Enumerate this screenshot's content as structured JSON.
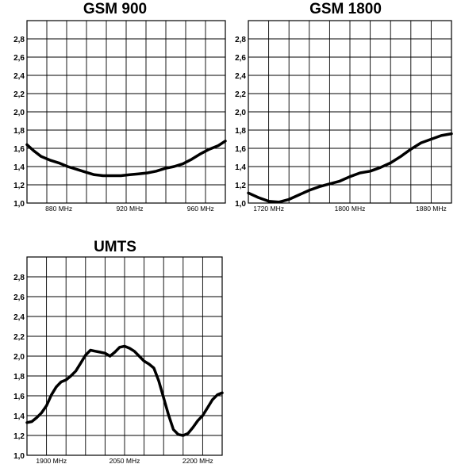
{
  "chart_data": [
    {
      "type": "line",
      "title": "GSM 900",
      "xlabel": "",
      "ylabel": "",
      "xlim": [
        862,
        974
      ],
      "ylim": [
        1.0,
        3.0
      ],
      "grid": true,
      "y_ticks": [
        "1,0",
        "1,2",
        "1,4",
        "1,6",
        "1,8",
        "2,0",
        "2,2",
        "2,4",
        "2,6",
        "2,8"
      ],
      "x_ticks": [
        {
          "value": 880,
          "label": "880 MHz"
        },
        {
          "value": 920,
          "label": "920 MHz"
        },
        {
          "value": 960,
          "label": "960 MHz"
        }
      ],
      "series": [
        {
          "x": [
            862,
            866,
            870,
            875,
            880,
            885,
            890,
            895,
            900,
            905,
            910,
            915,
            920,
            925,
            930,
            935,
            940,
            945,
            950,
            955,
            960,
            965,
            970,
            974
          ],
          "y": [
            1.64,
            1.57,
            1.51,
            1.47,
            1.44,
            1.4,
            1.37,
            1.34,
            1.31,
            1.3,
            1.3,
            1.3,
            1.31,
            1.32,
            1.33,
            1.35,
            1.38,
            1.4,
            1.43,
            1.48,
            1.54,
            1.59,
            1.63,
            1.68
          ]
        }
      ]
    },
    {
      "type": "line",
      "title": "GSM 1800",
      "xlabel": "",
      "ylabel": "",
      "xlim": [
        1700,
        1900
      ],
      "ylim": [
        1.0,
        3.0
      ],
      "grid": true,
      "y_ticks": [
        "1,0",
        "1,2",
        "1,4",
        "1,6",
        "1,8",
        "2,0",
        "2,2",
        "2,4",
        "2,6",
        "2,8"
      ],
      "x_ticks": [
        {
          "value": 1720,
          "label": "1720 MHz"
        },
        {
          "value": 1800,
          "label": "1800 MHz"
        },
        {
          "value": 1880,
          "label": "1880 MHz"
        }
      ],
      "series": [
        {
          "x": [
            1700,
            1710,
            1720,
            1730,
            1740,
            1750,
            1760,
            1770,
            1780,
            1790,
            1800,
            1810,
            1820,
            1830,
            1840,
            1850,
            1860,
            1870,
            1880,
            1890,
            1900
          ],
          "y": [
            1.11,
            1.06,
            1.02,
            1.01,
            1.04,
            1.09,
            1.14,
            1.18,
            1.21,
            1.24,
            1.29,
            1.33,
            1.35,
            1.39,
            1.44,
            1.51,
            1.59,
            1.66,
            1.7,
            1.74,
            1.76
          ]
        }
      ]
    },
    {
      "type": "line",
      "title": "UMTS",
      "xlabel": "",
      "ylabel": "",
      "xlim": [
        1850,
        2250
      ],
      "ylim": [
        1.0,
        3.0
      ],
      "grid": true,
      "y_ticks": [
        "1,0",
        "1,2",
        "1,4",
        "1,6",
        "1,8",
        "2,0",
        "2,2",
        "2,4",
        "2,6",
        "2,8"
      ],
      "x_ticks": [
        {
          "value": 1900,
          "label": "1900 MHz"
        },
        {
          "value": 2050,
          "label": "2050 MHz"
        },
        {
          "value": 2200,
          "label": "2200 MHz"
        }
      ],
      "series": [
        {
          "x": [
            1850,
            1860,
            1870,
            1880,
            1890,
            1900,
            1910,
            1920,
            1930,
            1940,
            1950,
            1960,
            1970,
            1980,
            1990,
            2000,
            2010,
            2020,
            2030,
            2040,
            2050,
            2060,
            2070,
            2080,
            2090,
            2100,
            2110,
            2120,
            2130,
            2140,
            2150,
            2160,
            2170,
            2180,
            2190,
            2200,
            2210,
            2220,
            2230,
            2240,
            2250
          ],
          "y": [
            1.33,
            1.34,
            1.38,
            1.43,
            1.5,
            1.61,
            1.69,
            1.74,
            1.76,
            1.8,
            1.85,
            1.93,
            2.01,
            2.06,
            2.05,
            2.04,
            2.03,
            2.0,
            2.04,
            2.09,
            2.1,
            2.08,
            2.05,
            2.0,
            1.95,
            1.92,
            1.88,
            1.75,
            1.58,
            1.41,
            1.26,
            1.21,
            1.2,
            1.22,
            1.28,
            1.35,
            1.4,
            1.48,
            1.56,
            1.61,
            1.63
          ]
        }
      ]
    }
  ]
}
